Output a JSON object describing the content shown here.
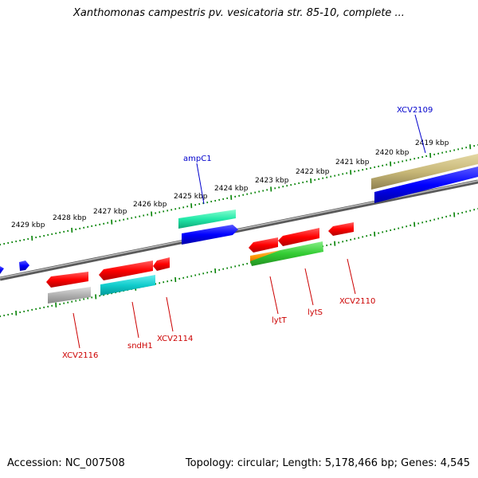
{
  "title": "Xanthomonas campestris pv. vesicatoria str. 85-10, complete ...",
  "footer": {
    "accession": "Accession: NC_007508",
    "topology": "Topology: circular; Length: 5,178,466 bp; Genes: 4,545"
  },
  "scale_labels": [
    "2429 kbp",
    "2428 kbp",
    "2427 kbp",
    "2426 kbp",
    "2425 kbp",
    "2424 kbp",
    "2423 kbp",
    "2422 kbp",
    "2421 kbp",
    "2420 kbp",
    "2419 kbp"
  ],
  "forward_strand_labels": [
    "ampC1",
    "XCV2109"
  ],
  "reverse_strand_labels": [
    "XCV2116",
    "sndH1",
    "XCV2114",
    "lytT",
    "lytS",
    "XCV2110"
  ],
  "colors": {
    "backbone": "#808080",
    "forward_label": "#0000cc",
    "reverse_label": "#cc0000",
    "red": "#ff0000",
    "blue": "#0000ff",
    "gray": "#b0b0b0",
    "cyan": "#00cccc",
    "teal": "#22e8a8",
    "khaki": "#c8b878",
    "green": "#33cc33",
    "orange": "#ff9900",
    "tick": "#008000"
  }
}
